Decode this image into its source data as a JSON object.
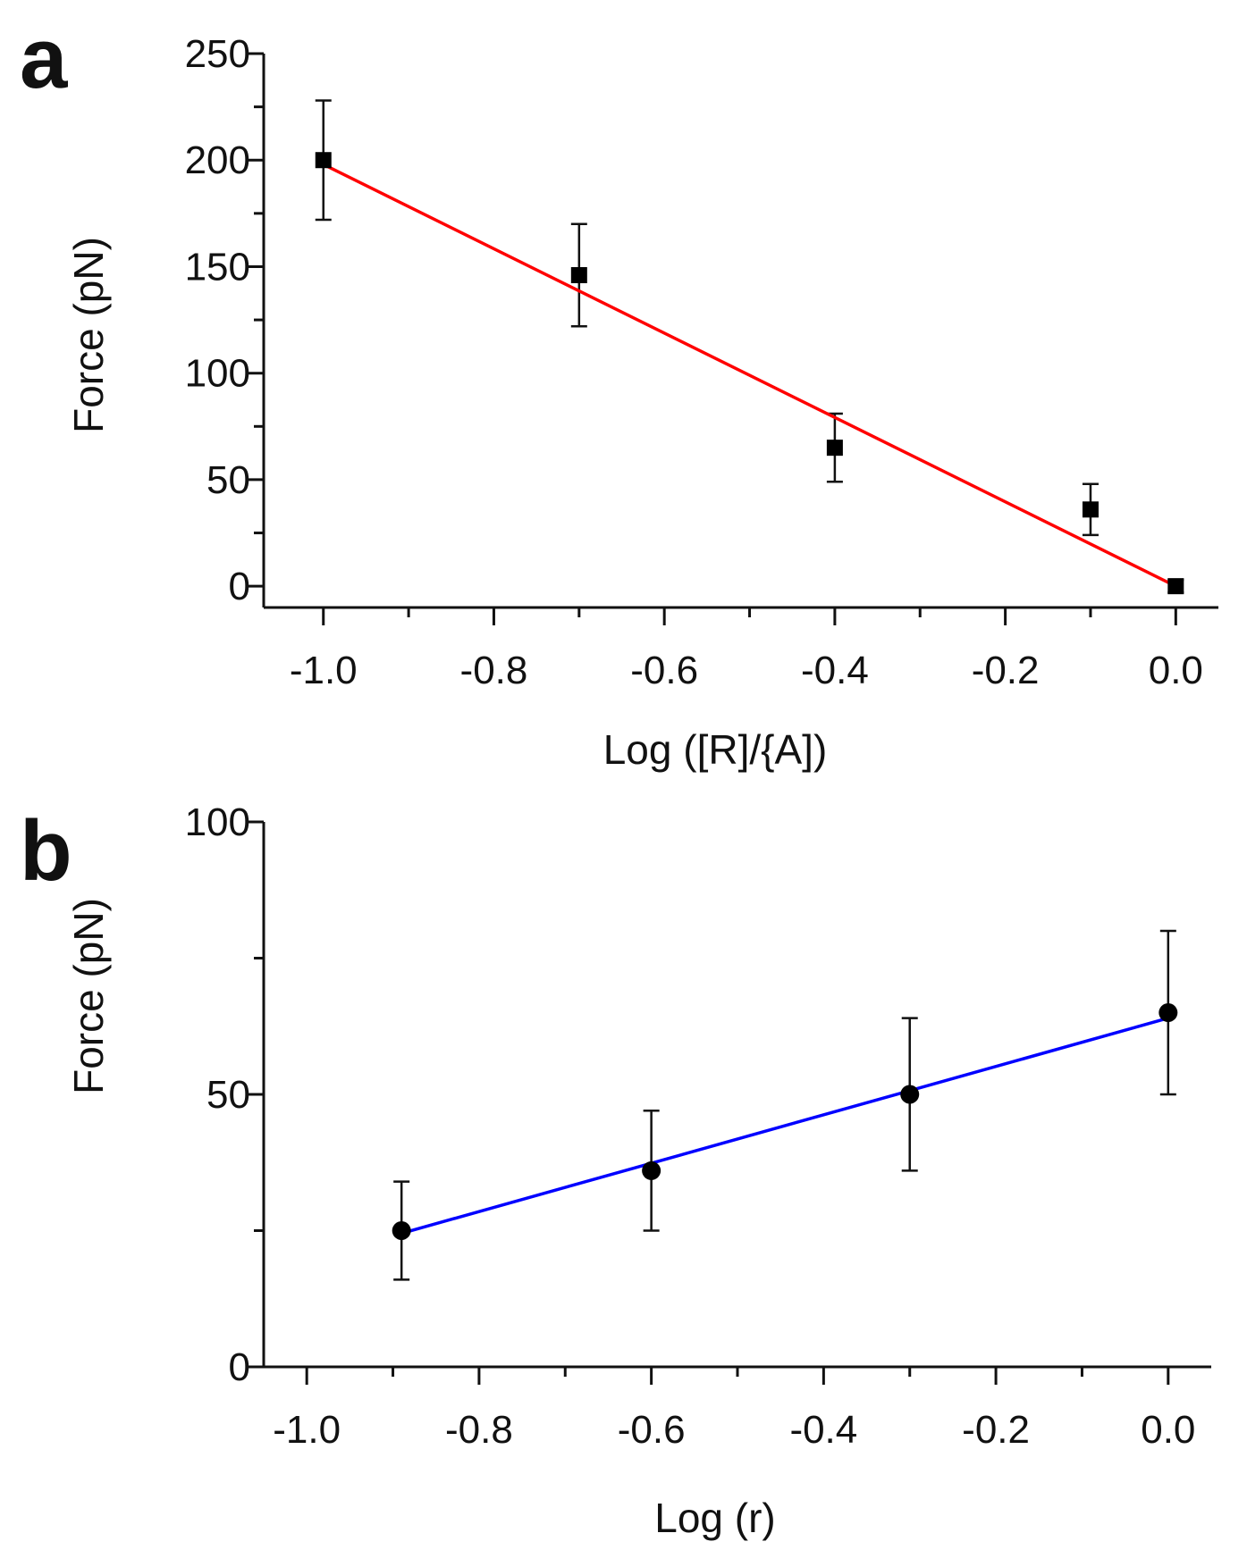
{
  "chart_data": [
    {
      "panel": "a",
      "type": "scatter",
      "title": "",
      "xlabel": "Log ([R]/{A])",
      "ylabel": "Force (pN)",
      "xlim": [
        -1.07,
        0.05
      ],
      "ylim": [
        -10,
        250
      ],
      "xticks": [
        -1.0,
        -0.8,
        -0.6,
        -0.4,
        -0.2,
        0.0
      ],
      "xtick_labels": [
        "-1.0",
        "-0.8",
        "-0.6",
        "-0.4",
        "-0.2",
        "0.0"
      ],
      "yticks": [
        0,
        50,
        100,
        150,
        200,
        250
      ],
      "ytick_labels": [
        "0",
        "50",
        "100",
        "150",
        "200",
        "250"
      ],
      "marker": "square",
      "color": "#000000",
      "x": [
        -1.0,
        -0.7,
        -0.4,
        -0.1,
        0.0
      ],
      "y": [
        200,
        146,
        65,
        36,
        0
      ],
      "err": [
        28,
        24,
        16,
        12,
        3
      ],
      "fit": {
        "color": "#ff0000",
        "x": [
          -1.0,
          0.0
        ],
        "y": [
          198,
          0
        ]
      }
    },
    {
      "panel": "b",
      "type": "scatter",
      "title": "",
      "xlabel": "Log (r)",
      "ylabel": "Force (pN)",
      "xlim": [
        -1.05,
        0.05
      ],
      "ylim": [
        0,
        100
      ],
      "xticks": [
        -1.0,
        -0.8,
        -0.6,
        -0.4,
        -0.2,
        0.0
      ],
      "xtick_labels": [
        "-1.0",
        "-0.8",
        "-0.6",
        "-0.4",
        "-0.2",
        "0.0"
      ],
      "yticks": [
        0,
        50,
        100
      ],
      "ytick_labels": [
        "0",
        "50",
        "100"
      ],
      "marker": "circle",
      "color": "#000000",
      "x": [
        -0.89,
        -0.6,
        -0.3,
        0.0
      ],
      "y": [
        25,
        36,
        50,
        65
      ],
      "err": [
        9,
        11,
        14,
        15
      ],
      "fit": {
        "color": "#0000ff",
        "x": [
          -0.89,
          0.0
        ],
        "y": [
          24.5,
          64
        ]
      }
    }
  ]
}
